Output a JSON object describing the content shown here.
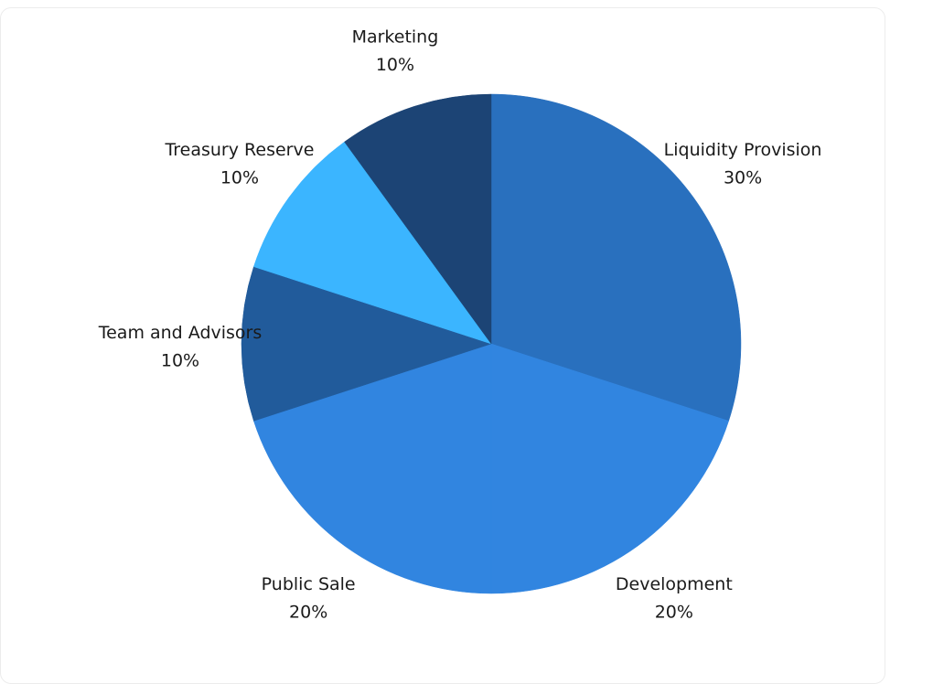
{
  "chart_data": {
    "type": "pie",
    "start_angle_deg": 0,
    "direction": "clockwise",
    "slices": [
      {
        "label": "Liquidity Provision",
        "value": 30,
        "pct_text": "30%",
        "color": "#2970be"
      },
      {
        "label": "Development",
        "value": 20,
        "pct_text": "20%",
        "color": "#3185e0"
      },
      {
        "label": "Public Sale",
        "value": 20,
        "pct_text": "20%",
        "color": "#3185e0"
      },
      {
        "label": "Team and Advisors",
        "value": 10,
        "pct_text": "10%",
        "color": "#215b9b"
      },
      {
        "label": "Treasury Reserve",
        "value": 10,
        "pct_text": "10%",
        "color": "#3bb5ff"
      },
      {
        "label": "Marketing",
        "value": 10,
        "pct_text": "10%",
        "color": "#1c4475"
      }
    ]
  }
}
